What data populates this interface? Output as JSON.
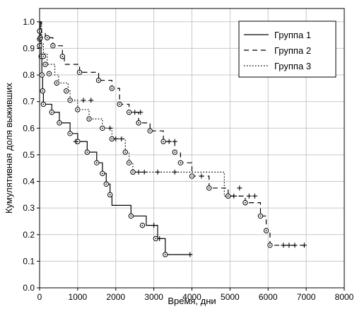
{
  "chart_data": {
    "type": "line",
    "subtype": "kaplan-meier step",
    "title": "",
    "xlabel": "Время, дни",
    "ylabel": "Кумулятивная доля выживших",
    "xlim": [
      0,
      8000
    ],
    "ylim": [
      0,
      1.05
    ],
    "x_ticks": [
      "0",
      "1000",
      "2000",
      "3000",
      "4000",
      "5000",
      "6000",
      "7000",
      "8000"
    ],
    "y_ticks": [
      "0.0",
      "0.1",
      "0.2",
      "0.3",
      "0.4",
      "0.5",
      "0.6",
      "0.7",
      "0.8",
      "0.9",
      "1.0"
    ],
    "grid": true,
    "legend_position": "top-right",
    "series": [
      {
        "name": "Группа 1",
        "style": "solid",
        "steps": [
          [
            0,
            1.0
          ],
          [
            20,
            0.94
          ],
          [
            40,
            0.87
          ],
          [
            60,
            0.8
          ],
          [
            80,
            0.74
          ],
          [
            100,
            0.69
          ],
          [
            320,
            0.66
          ],
          [
            520,
            0.62
          ],
          [
            800,
            0.58
          ],
          [
            1000,
            0.55
          ],
          [
            1250,
            0.51
          ],
          [
            1500,
            0.47
          ],
          [
            1650,
            0.43
          ],
          [
            1750,
            0.39
          ],
          [
            1850,
            0.35
          ],
          [
            1900,
            0.31
          ],
          [
            2400,
            0.27
          ],
          [
            2800,
            0.235
          ],
          [
            3100,
            0.185
          ],
          [
            3300,
            0.125
          ],
          [
            4000,
            0.125
          ]
        ],
        "events": [
          [
            0,
            0.965
          ],
          [
            0,
            0.935
          ],
          [
            20,
            0.94
          ],
          [
            40,
            0.87
          ],
          [
            60,
            0.8
          ],
          [
            80,
            0.74
          ],
          [
            100,
            0.69
          ],
          [
            320,
            0.66
          ],
          [
            520,
            0.62
          ],
          [
            800,
            0.58
          ],
          [
            1000,
            0.55
          ],
          [
            1250,
            0.51
          ],
          [
            1500,
            0.47
          ],
          [
            1650,
            0.43
          ],
          [
            1750,
            0.39
          ],
          [
            1850,
            0.35
          ],
          [
            2400,
            0.27
          ],
          [
            2700,
            0.235
          ],
          [
            3050,
            0.185
          ],
          [
            3300,
            0.125
          ]
        ],
        "censored": [
          [
            950,
            0.55
          ],
          [
            3000,
            0.235
          ],
          [
            3150,
            0.185
          ],
          [
            3950,
            0.125
          ]
        ]
      },
      {
        "name": "Группа 2",
        "style": "dashed",
        "steps": [
          [
            0,
            1.0
          ],
          [
            50,
            0.96
          ],
          [
            150,
            0.94
          ],
          [
            350,
            0.91
          ],
          [
            600,
            0.87
          ],
          [
            650,
            0.84
          ],
          [
            1050,
            0.81
          ],
          [
            1550,
            0.78
          ],
          [
            1900,
            0.75
          ],
          [
            2100,
            0.69
          ],
          [
            2350,
            0.66
          ],
          [
            2600,
            0.62
          ],
          [
            2900,
            0.59
          ],
          [
            3250,
            0.55
          ],
          [
            3550,
            0.51
          ],
          [
            3700,
            0.47
          ],
          [
            4000,
            0.42
          ],
          [
            4450,
            0.375
          ],
          [
            4950,
            0.345
          ],
          [
            5400,
            0.32
          ],
          [
            5800,
            0.27
          ],
          [
            5950,
            0.215
          ],
          [
            6050,
            0.16
          ],
          [
            7000,
            0.16
          ]
        ],
        "events": [
          [
            200,
            0.94
          ],
          [
            350,
            0.91
          ],
          [
            600,
            0.87
          ],
          [
            1050,
            0.81
          ],
          [
            1550,
            0.78
          ],
          [
            1900,
            0.75
          ],
          [
            2100,
            0.69
          ],
          [
            2350,
            0.66
          ],
          [
            2600,
            0.62
          ],
          [
            2900,
            0.59
          ],
          [
            3250,
            0.55
          ],
          [
            3550,
            0.51
          ],
          [
            3700,
            0.47
          ],
          [
            4000,
            0.42
          ],
          [
            4450,
            0.375
          ],
          [
            4950,
            0.345
          ],
          [
            5400,
            0.32
          ],
          [
            5800,
            0.27
          ],
          [
            5950,
            0.215
          ],
          [
            6050,
            0.16
          ]
        ],
        "censored": [
          [
            2500,
            0.66
          ],
          [
            2650,
            0.66
          ],
          [
            3400,
            0.55
          ],
          [
            3550,
            0.55
          ],
          [
            4250,
            0.42
          ],
          [
            5100,
            0.345
          ],
          [
            5250,
            0.375
          ],
          [
            5500,
            0.345
          ],
          [
            5650,
            0.345
          ],
          [
            6400,
            0.16
          ],
          [
            6550,
            0.16
          ],
          [
            6700,
            0.16
          ],
          [
            6950,
            0.16
          ]
        ]
      },
      {
        "name": "Группа 3",
        "style": "dotted",
        "steps": [
          [
            0,
            1.0
          ],
          [
            50,
            0.92
          ],
          [
            100,
            0.88
          ],
          [
            200,
            0.84
          ],
          [
            400,
            0.8
          ],
          [
            500,
            0.77
          ],
          [
            750,
            0.74
          ],
          [
            800,
            0.705
          ],
          [
            1000,
            0.67
          ],
          [
            1300,
            0.635
          ],
          [
            1650,
            0.6
          ],
          [
            1900,
            0.56
          ],
          [
            2250,
            0.51
          ],
          [
            2350,
            0.47
          ],
          [
            2450,
            0.435
          ],
          [
            4850,
            0.435
          ],
          [
            4850,
            0.345
          ],
          [
            5300,
            0.345
          ]
        ],
        "events": [
          [
            0,
            0.91
          ],
          [
            100,
            0.87
          ],
          [
            150,
            0.84
          ],
          [
            250,
            0.805
          ],
          [
            450,
            0.77
          ],
          [
            700,
            0.74
          ],
          [
            800,
            0.705
          ],
          [
            1000,
            0.67
          ],
          [
            1300,
            0.635
          ],
          [
            1650,
            0.6
          ],
          [
            1900,
            0.56
          ],
          [
            2250,
            0.51
          ],
          [
            2350,
            0.47
          ],
          [
            2450,
            0.435
          ]
        ],
        "censored": [
          [
            1150,
            0.705
          ],
          [
            1350,
            0.705
          ],
          [
            1850,
            0.6
          ],
          [
            2000,
            0.56
          ],
          [
            2150,
            0.56
          ],
          [
            2600,
            0.435
          ],
          [
            2750,
            0.435
          ],
          [
            3100,
            0.435
          ],
          [
            3550,
            0.435
          ]
        ]
      }
    ]
  }
}
